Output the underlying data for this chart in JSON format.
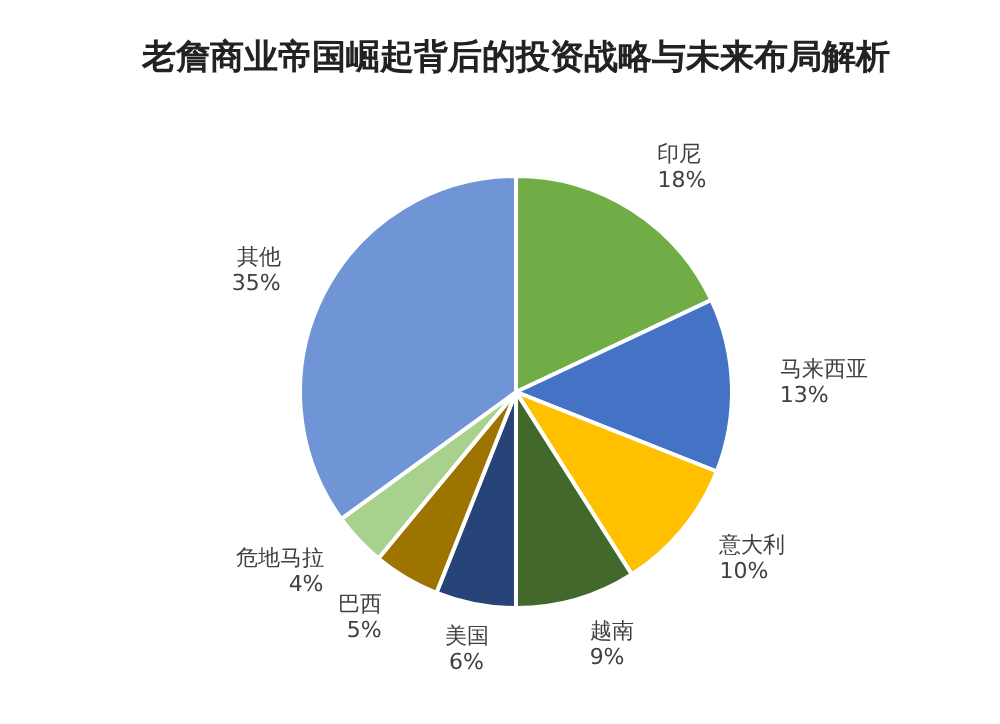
{
  "chart_data": {
    "type": "pie",
    "title": "老詹商业帝国崛起背后的投资战略与未来布局解析",
    "categories": [
      "印尼",
      "马来西亚",
      "意大利",
      "越南",
      "美国",
      "巴西",
      "危地马拉",
      "其他"
    ],
    "values": [
      18,
      13,
      10,
      9,
      6,
      5,
      4,
      35
    ],
    "colors": [
      "#70ad47",
      "#4472c4",
      "#ffc000",
      "#43682b",
      "#264478",
      "#9e7400",
      "#a9d18e",
      "#6f95d6"
    ],
    "value_labels": [
      "18%",
      "13%",
      "10%",
      "9%",
      "6%",
      "5%",
      "4%",
      "35%"
    ]
  }
}
